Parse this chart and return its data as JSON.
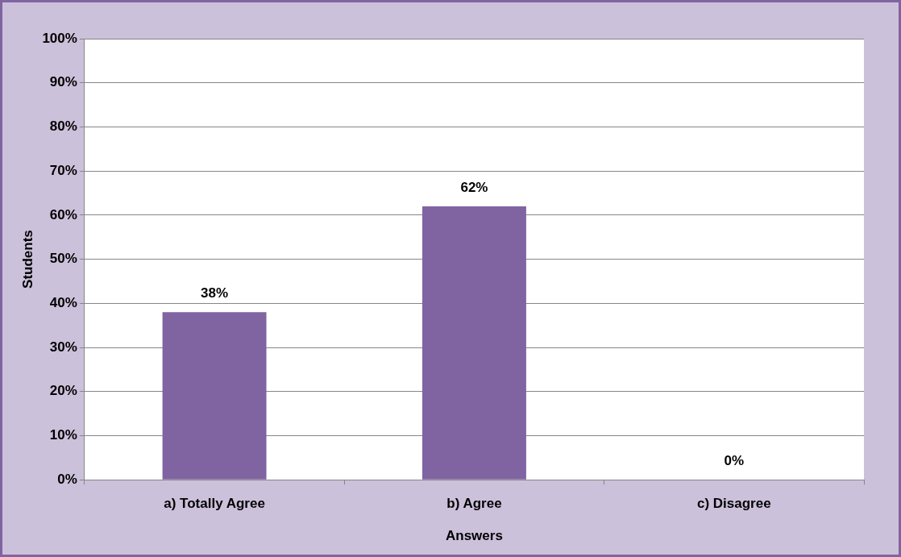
{
  "chart_data": {
    "type": "bar",
    "xlabel": "Answers",
    "ylabel": "Students",
    "categories": [
      "a) Totally Agree",
      "b) Agree",
      "c) Disagree"
    ],
    "values": [
      38,
      62,
      0
    ],
    "color": "#8064a2",
    "value_labels": [
      "38%",
      "62%",
      "0%"
    ],
    "ylim": [
      0,
      100
    ],
    "yticks": [
      {
        "value": 0,
        "label": "0%"
      },
      {
        "value": 10,
        "label": "10%"
      },
      {
        "value": 20,
        "label": "20%"
      },
      {
        "value": 30,
        "label": "30%"
      },
      {
        "value": 40,
        "label": "40%"
      },
      {
        "value": 50,
        "label": "50%"
      },
      {
        "value": 60,
        "label": "60%"
      },
      {
        "value": 70,
        "label": "70%"
      },
      {
        "value": 80,
        "label": "80%"
      },
      {
        "value": 90,
        "label": "90%"
      },
      {
        "value": 100,
        "label": "100%"
      }
    ],
    "grid": "y",
    "legend": false
  }
}
